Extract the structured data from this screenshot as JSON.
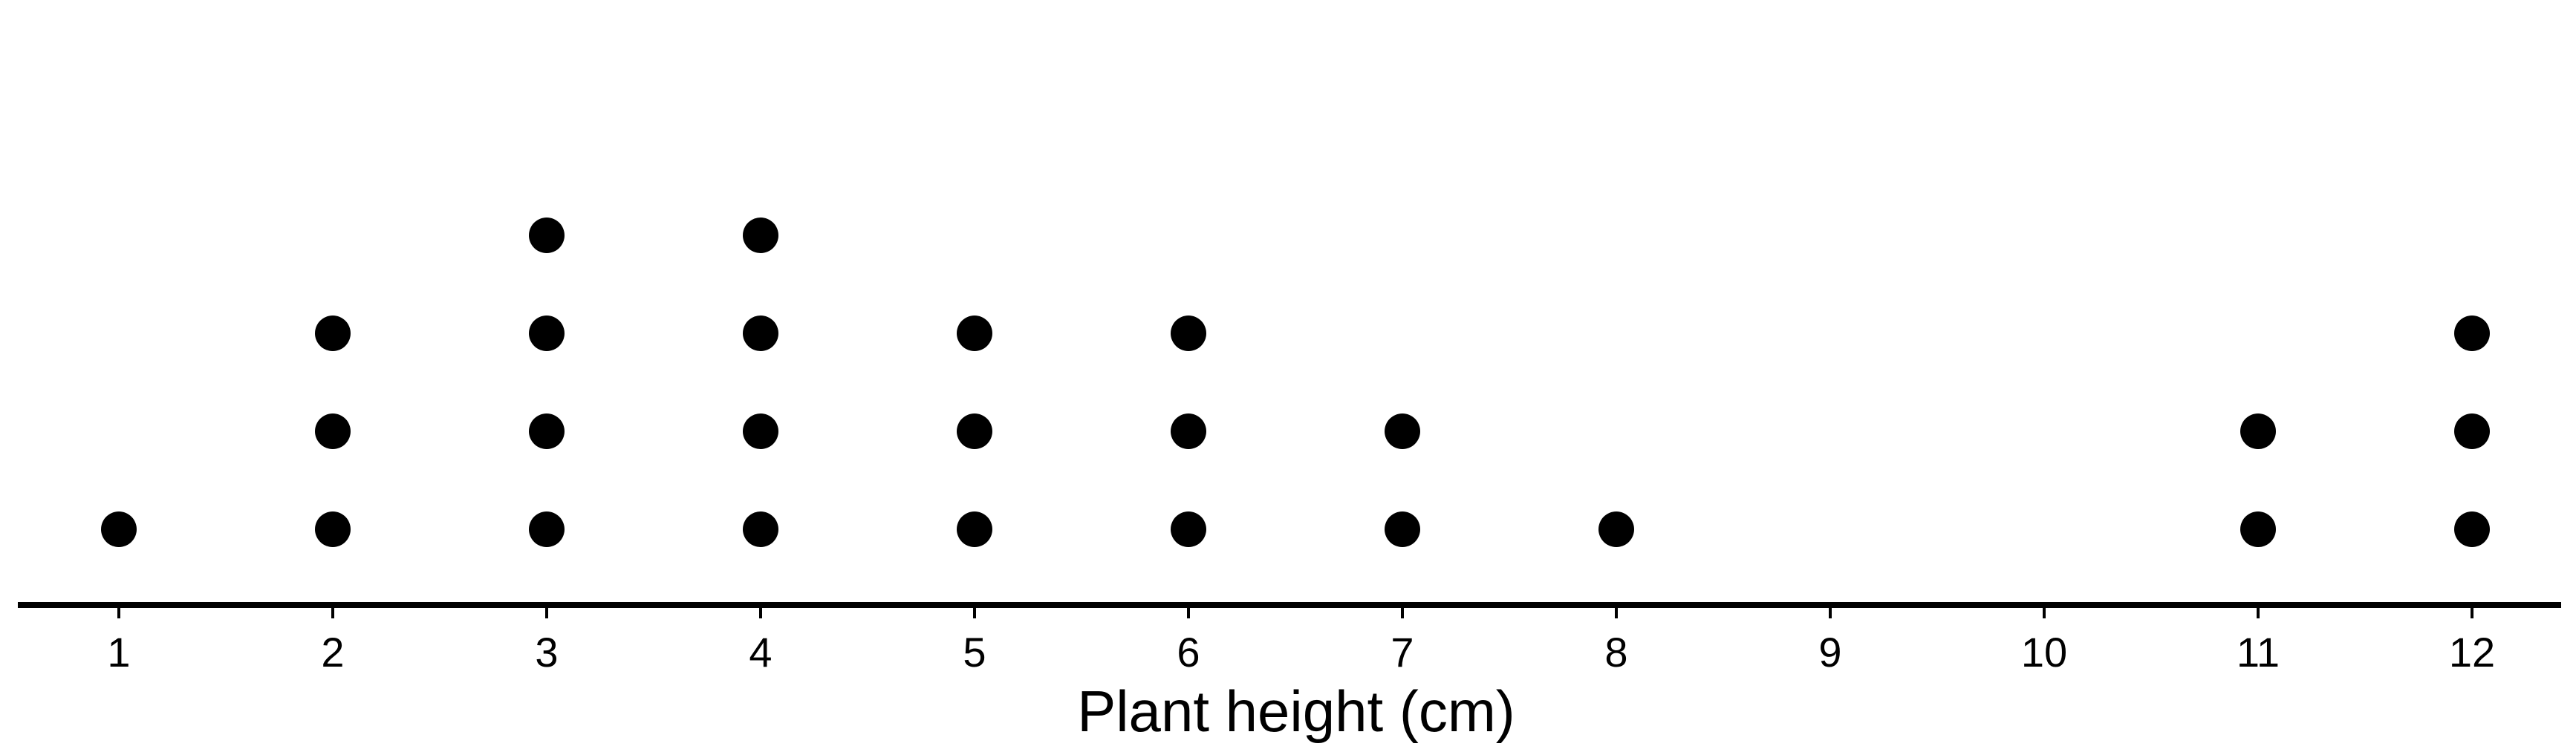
{
  "chart_data": {
    "type": "dot-plot",
    "title": "",
    "xlabel": "Plant height (cm)",
    "ylabel": "",
    "xlim": [
      1,
      12
    ],
    "ticks": [
      1,
      2,
      3,
      4,
      5,
      6,
      7,
      8,
      9,
      10,
      11,
      12
    ],
    "tick_labels": [
      "1",
      "2",
      "3",
      "4",
      "5",
      "6",
      "7",
      "8",
      "9",
      "10",
      "11",
      "12"
    ],
    "values": [
      1,
      2,
      3,
      4,
      5,
      6,
      7,
      8,
      9,
      10,
      11,
      12
    ],
    "counts": [
      1,
      3,
      4,
      4,
      3,
      3,
      2,
      1,
      0,
      0,
      2,
      3
    ],
    "grid": false,
    "colors": {
      "dot": "#000000",
      "axis": "#000000",
      "background": "#ffffff"
    }
  }
}
